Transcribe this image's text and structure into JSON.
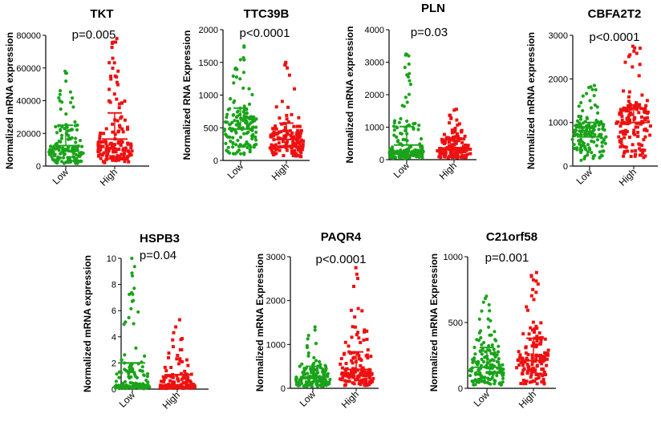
{
  "colors": {
    "low": "#1aa31a",
    "high": "#ee1111",
    "axis": "#000000"
  },
  "chart_data": [
    {
      "type": "scatter",
      "title": "TKT",
      "pvalue": "p=0.005",
      "ylabel": "Normalized mRNA expression",
      "categories": [
        "Low",
        "High"
      ],
      "ylim": [
        0,
        80000
      ],
      "yticks": [
        0,
        20000,
        40000,
        60000,
        80000
      ],
      "ytick_labels": [
        "0",
        "20000",
        "40000",
        "60000",
        "80000"
      ],
      "series": [
        {
          "name": "Low",
          "mean": 12500,
          "sd_upper": 25000,
          "max": 58000,
          "typical": 8000
        },
        {
          "name": "High",
          "mean": 16500,
          "sd_upper": 32500,
          "max": 78000,
          "typical": 10000
        }
      ]
    },
    {
      "type": "scatter",
      "title": "TTC39B",
      "pvalue": "p<0.0001",
      "ylabel": "Normalized RNA Expression",
      "categories": [
        "Low",
        "High"
      ],
      "ylim": [
        0,
        2000
      ],
      "yticks": [
        0,
        500,
        1000,
        1500,
        2000
      ],
      "ytick_labels": [
        "0",
        "500",
        "1000",
        "1500",
        "2000"
      ],
      "series": [
        {
          "name": "Low",
          "mean": 480,
          "sd_upper": 800,
          "max": 1750,
          "typical": 450
        },
        {
          "name": "High",
          "mean": 320,
          "sd_upper": 570,
          "max": 1500,
          "typical": 280
        }
      ]
    },
    {
      "type": "scatter",
      "title": "PLN",
      "pvalue": "p=0.03",
      "ylabel": "Normalized mRNA expression",
      "categories": [
        "Low",
        "High"
      ],
      "ylim": [
        0,
        4000
      ],
      "yticks": [
        0,
        1000,
        2000,
        3000,
        4000
      ],
      "ytick_labels": [
        "0",
        "1000",
        "2000",
        "3000",
        "4000"
      ],
      "series": [
        {
          "name": "Low",
          "mean": 450,
          "sd_upper": 1020,
          "max": 3250,
          "typical": 200
        },
        {
          "name": "High",
          "mean": 330,
          "sd_upper": 650,
          "max": 1550,
          "typical": 250
        }
      ]
    },
    {
      "type": "scatter",
      "title": "CBFA2T2",
      "pvalue": "p<0.0001",
      "ylabel": "Normalized mRNA expression",
      "categories": [
        "Low",
        "High"
      ],
      "ylim": [
        0,
        3000
      ],
      "yticks": [
        0,
        1000,
        2000,
        3000
      ],
      "ytick_labels": [
        "0",
        "1000",
        "2000",
        "3000"
      ],
      "series": [
        {
          "name": "Low",
          "mean": 670,
          "sd_upper": 1000,
          "max": 1850,
          "typical": 650
        },
        {
          "name": "High",
          "mean": 1000,
          "sd_upper": 1400,
          "max": 2750,
          "typical": 950
        }
      ]
    },
    {
      "type": "scatter",
      "title": "HSPB3",
      "pvalue": "p=0.04",
      "ylabel": "Normalized mRNA expression",
      "categories": [
        "Low",
        "High"
      ],
      "ylim": [
        0,
        10
      ],
      "yticks": [
        0,
        2,
        4,
        6,
        8,
        10
      ],
      "ytick_labels": [
        "0",
        "2",
        "4",
        "6",
        "8",
        "10"
      ],
      "series": [
        {
          "name": "Low",
          "mean": 2.0,
          "sd_upper": 2.0,
          "max": 10,
          "typical": 0.2
        },
        {
          "name": "High",
          "mean": 1.1,
          "sd_upper": 1.1,
          "max": 5.3,
          "typical": 0.2
        }
      ]
    },
    {
      "type": "scatter",
      "title": "PAQR4",
      "pvalue": "p<0.0001",
      "ylabel": "Normalized mRNA Expression",
      "categories": [
        "Low",
        "High"
      ],
      "ylim": [
        0,
        3000
      ],
      "yticks": [
        0,
        1000,
        2000,
        3000
      ],
      "ytick_labels": [
        "0",
        "1000",
        "2000",
        "3000"
      ],
      "series": [
        {
          "name": "Low",
          "mean": 250,
          "sd_upper": 500,
          "max": 1400,
          "typical": 180
        },
        {
          "name": "High",
          "mean": 430,
          "sd_upper": 830,
          "max": 2750,
          "typical": 300
        }
      ]
    },
    {
      "type": "scatter",
      "title": "C21orf58",
      "pvalue": "p=0.001",
      "ylabel": "Normalized mRNA Expression",
      "categories": [
        "Low",
        "High"
      ],
      "ylim": [
        0,
        1000
      ],
      "yticks": [
        0,
        500,
        1000
      ],
      "ytick_labels": [
        "0",
        "500",
        "1000"
      ],
      "series": [
        {
          "name": "Low",
          "mean": 160,
          "sd_upper": 310,
          "max": 700,
          "typical": 120
        },
        {
          "name": "High",
          "mean": 210,
          "sd_upper": 380,
          "max": 880,
          "typical": 170
        }
      ]
    }
  ]
}
